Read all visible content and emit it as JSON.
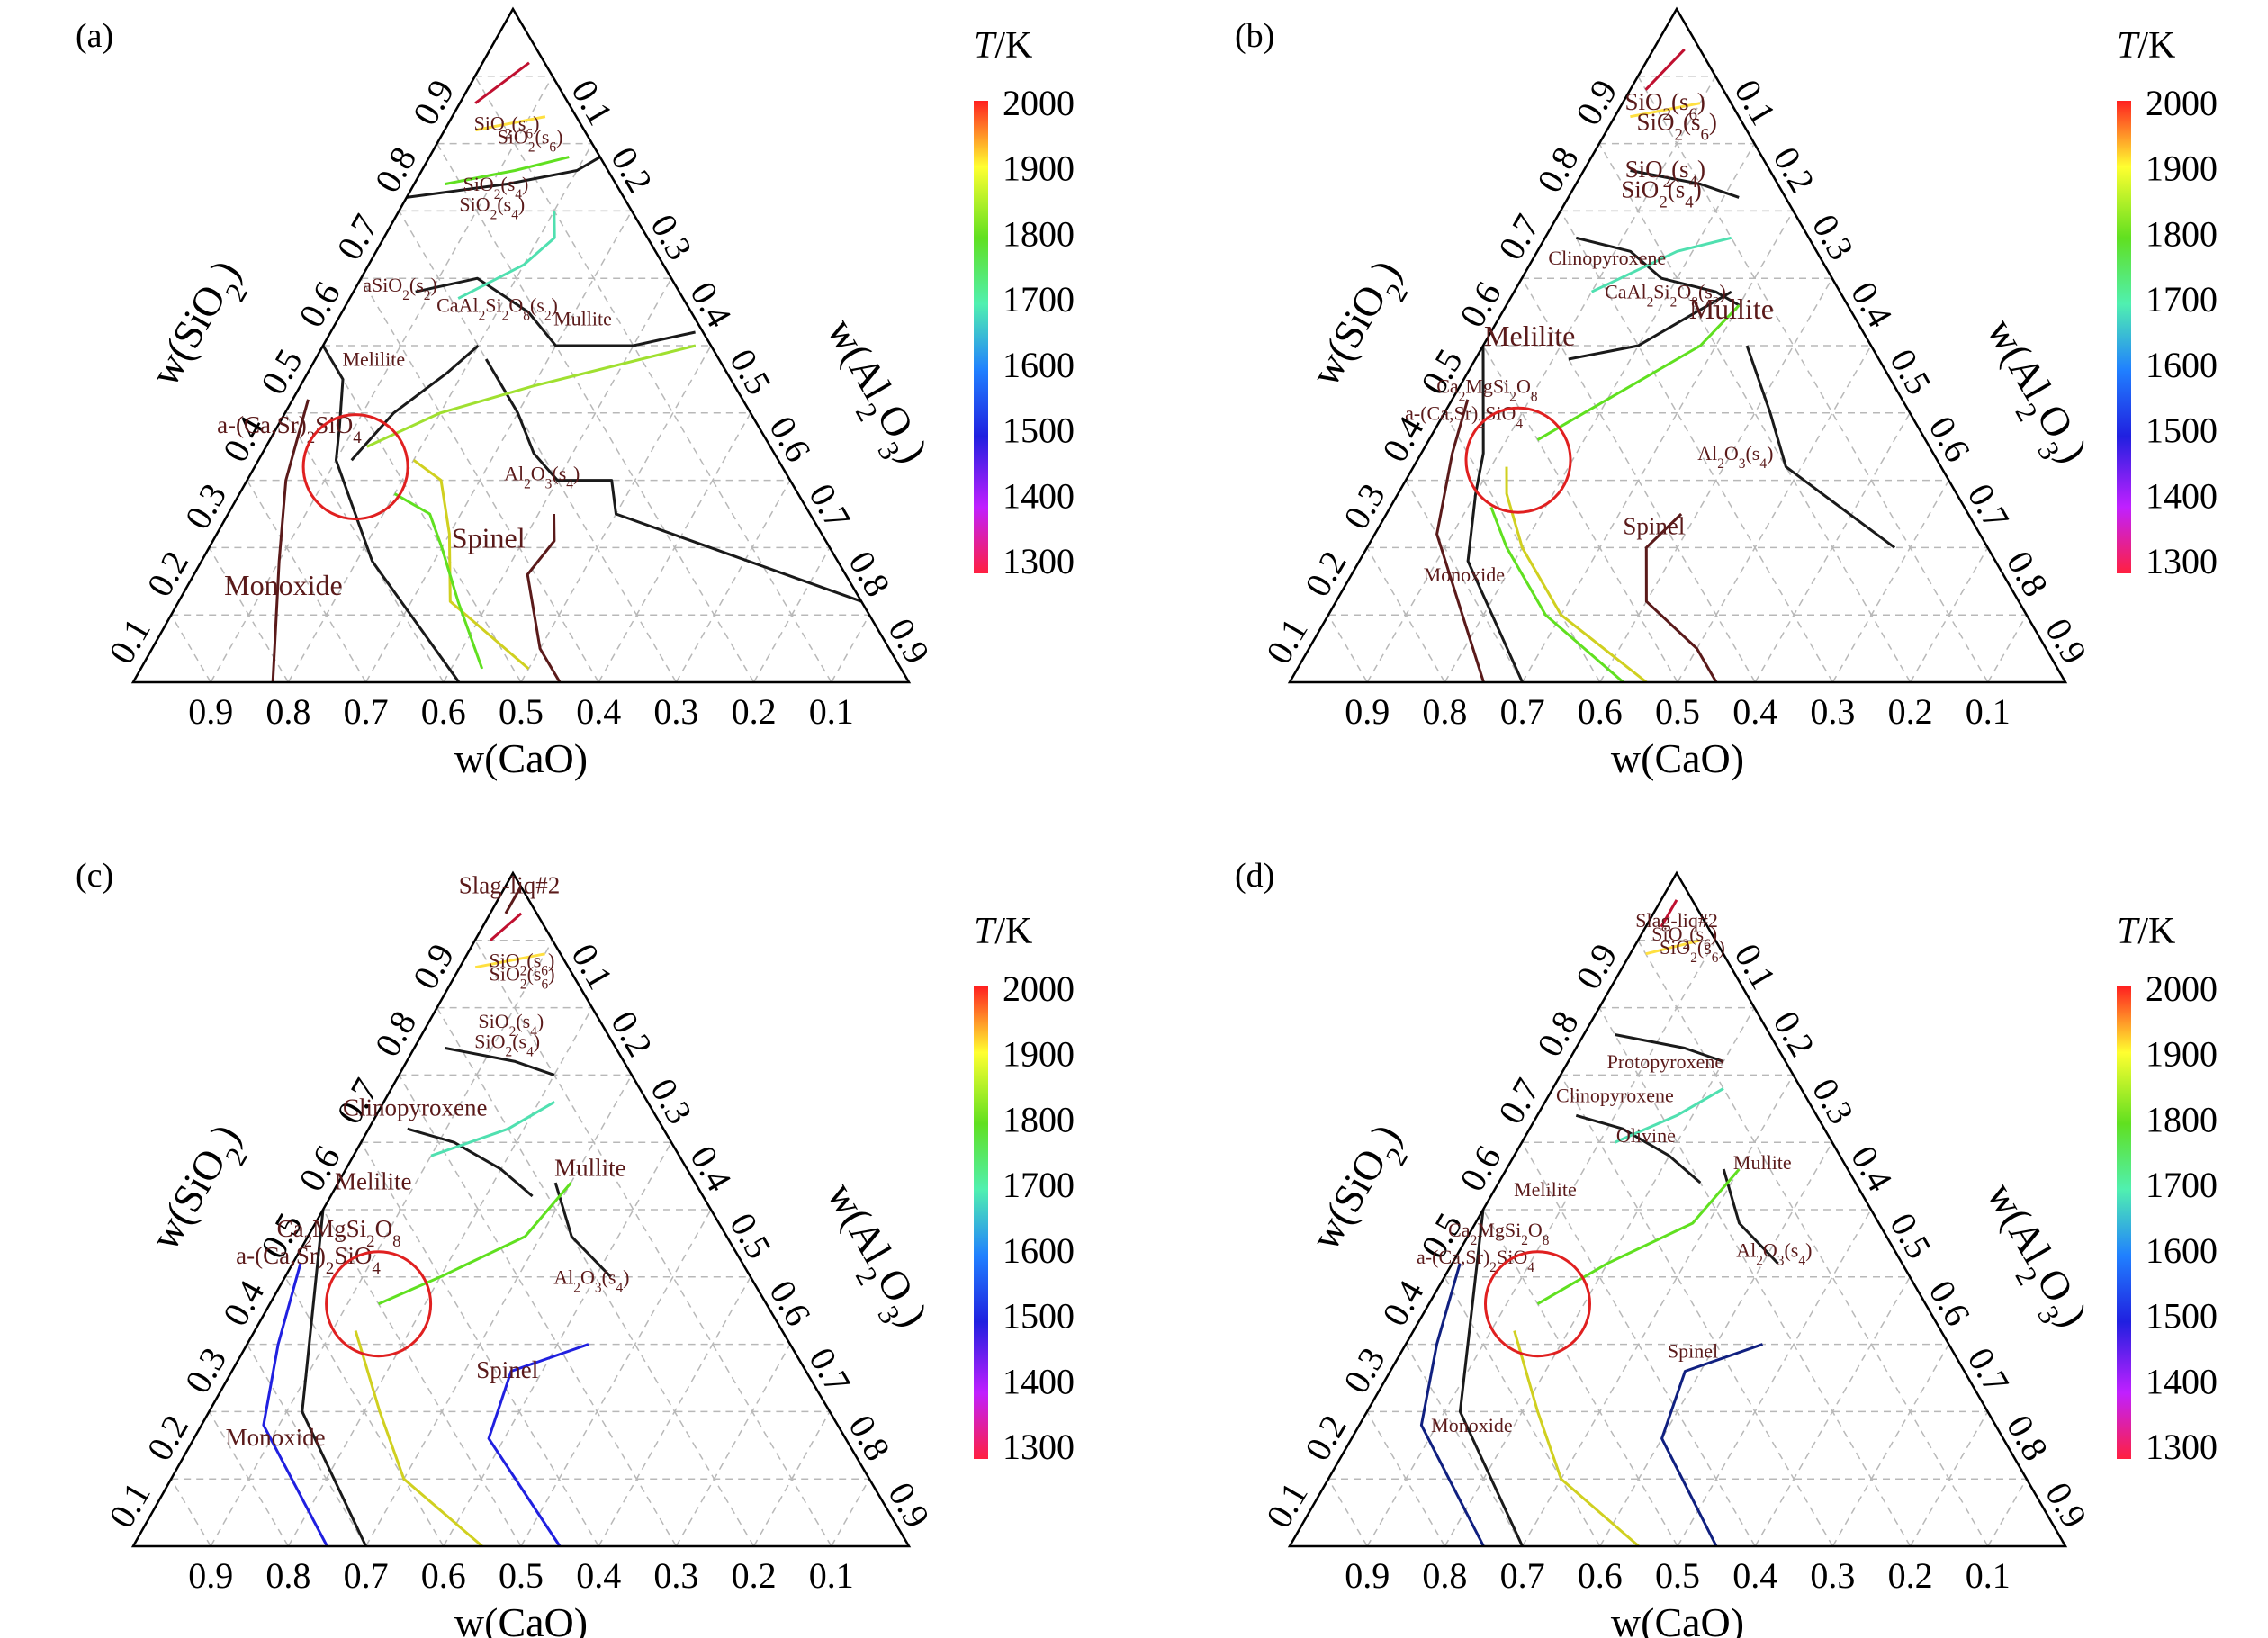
{
  "chart_data": [
    {
      "type": "ternary-phase-diagram",
      "panel": "(a)",
      "axes": {
        "left": "w(SiO2)",
        "right": "w(Al2O3)",
        "bottom": "w(CaO)",
        "ticks": [
          "0.1",
          "0.2",
          "0.3",
          "0.4",
          "0.5",
          "0.6",
          "0.7",
          "0.8",
          "0.9"
        ],
        "bottom_ticks": [
          "0.9",
          "0.8",
          "0.7",
          "0.6",
          "0.5",
          "0.4",
          "0.3",
          "0.2",
          "0.1"
        ]
      },
      "colorbar": {
        "title": "T/K",
        "ticks": [
          "2000",
          "1900",
          "1800",
          "1700",
          "1600",
          "1500",
          "1400",
          "1300"
        ],
        "range": [
          1300,
          2000
        ]
      },
      "regions": [
        {
          "label": "SiO2(s6)",
          "sio2": 0.82,
          "al2o3": 0.08,
          "size": "s"
        },
        {
          "label": "SiO2(s6)",
          "sio2": 0.8,
          "al2o3": 0.12,
          "size": "s"
        },
        {
          "label": "SiO2(s4)",
          "sio2": 0.73,
          "al2o3": 0.11,
          "size": "s"
        },
        {
          "label": "SiO2(s4)",
          "sio2": 0.7,
          "al2o3": 0.12,
          "size": "s"
        },
        {
          "label": "aSiO2(s2)",
          "sio2": 0.58,
          "al2o3": 0.06,
          "size": "s"
        },
        {
          "label": "CaAl2Si2O8(s2)",
          "sio2": 0.55,
          "al2o3": 0.2,
          "size": "s"
        },
        {
          "label": "Mullite",
          "sio2": 0.53,
          "al2o3": 0.32,
          "size": "s"
        },
        {
          "label": "Melilite",
          "sio2": 0.47,
          "al2o3": 0.08,
          "size": "s"
        },
        {
          "label": "a-(Ca,Sr)2SiO4",
          "sio2": 0.37,
          "al2o3": 0.02,
          "size": "m"
        },
        {
          "label": "Al2O3(s4)",
          "sio2": 0.3,
          "al2o3": 0.38,
          "size": "s"
        },
        {
          "label": "Spinel",
          "sio2": 0.2,
          "al2o3": 0.36,
          "size": "l"
        },
        {
          "label": "Monoxide",
          "sio2": 0.13,
          "al2o3": 0.13,
          "size": "l"
        }
      ],
      "highlight_circle": {
        "sio2": 0.32,
        "al2o3": 0.13
      }
    },
    {
      "type": "ternary-phase-diagram",
      "panel": "(b)",
      "axes": {
        "left": "w(SiO2)",
        "right": "w(Al2O3)",
        "bottom": "w(CaO)",
        "ticks": [
          "0.1",
          "0.2",
          "0.3",
          "0.4",
          "0.5",
          "0.6",
          "0.7",
          "0.8",
          "0.9"
        ],
        "bottom_ticks": [
          "0.9",
          "0.8",
          "0.7",
          "0.6",
          "0.5",
          "0.4",
          "0.3",
          "0.2",
          "0.1"
        ]
      },
      "colorbar": {
        "title": "T/K",
        "ticks": [
          "2000",
          "1900",
          "1800",
          "1700",
          "1600",
          "1500",
          "1400",
          "1300"
        ],
        "range": [
          1300,
          2000
        ]
      },
      "regions": [
        {
          "label": "SiO2(s6)",
          "sio2": 0.85,
          "al2o3": 0.06,
          "size": "m"
        },
        {
          "label": "SiO2(s6)",
          "sio2": 0.82,
          "al2o3": 0.09,
          "size": "m"
        },
        {
          "label": "SiO2(s4)",
          "sio2": 0.75,
          "al2o3": 0.11,
          "size": "m"
        },
        {
          "label": "SiO2(s4)",
          "sio2": 0.72,
          "al2o3": 0.12,
          "size": "m"
        },
        {
          "label": "Clinopyroxene",
          "sio2": 0.62,
          "al2o3": 0.1,
          "size": "s"
        },
        {
          "label": "CaAl2Si2O8(s2)",
          "sio2": 0.57,
          "al2o3": 0.2,
          "size": "s"
        },
        {
          "label": "Mullite",
          "sio2": 0.54,
          "al2o3": 0.3,
          "size": "l"
        },
        {
          "label": "Melilite",
          "sio2": 0.5,
          "al2o3": 0.06,
          "size": "l"
        },
        {
          "label": "Ca2MgSi2O8",
          "sio2": 0.43,
          "al2o3": 0.04,
          "size": "s"
        },
        {
          "label": "a-(Ca,Sr)2SiO4",
          "sio2": 0.39,
          "al2o3": 0.03,
          "size": "s"
        },
        {
          "label": "Al2O3(s4)",
          "sio2": 0.33,
          "al2o3": 0.41,
          "size": "s"
        },
        {
          "label": "Spinel",
          "sio2": 0.22,
          "al2o3": 0.36,
          "size": "m"
        },
        {
          "label": "Monoxide",
          "sio2": 0.15,
          "al2o3": 0.15,
          "size": "s"
        }
      ],
      "highlight_circle": {
        "sio2": 0.33,
        "al2o3": 0.13
      }
    },
    {
      "type": "ternary-phase-diagram",
      "panel": "(c)",
      "axes": {
        "left": "w(SiO2)",
        "right": "w(Al2O3)",
        "bottom": "w(CaO)",
        "ticks": [
          "0.1",
          "0.2",
          "0.3",
          "0.4",
          "0.5",
          "0.6",
          "0.7",
          "0.8",
          "0.9"
        ],
        "bottom_ticks": [
          "0.9",
          "0.8",
          "0.7",
          "0.6",
          "0.5",
          "0.4",
          "0.3",
          "0.2",
          "0.1"
        ]
      },
      "colorbar": {
        "title": "T/K",
        "ticks": [
          "2000",
          "1900",
          "1800",
          "1700",
          "1600",
          "1500",
          "1400",
          "1300"
        ],
        "range": [
          1300,
          2000
        ]
      },
      "regions": [
        {
          "label": "Slag-liq#2",
          "sio2": 0.97,
          "al2o3": 0.01,
          "size": "m"
        },
        {
          "label": "SiO2(s6)",
          "sio2": 0.86,
          "al2o3": 0.08,
          "size": "s"
        },
        {
          "label": "SiO2(s6)",
          "sio2": 0.84,
          "al2o3": 0.09,
          "size": "s"
        },
        {
          "label": "SiO2(s4)",
          "sio2": 0.77,
          "al2o3": 0.11,
          "size": "s"
        },
        {
          "label": "SiO2(s4)",
          "sio2": 0.74,
          "al2o3": 0.12,
          "size": "s"
        },
        {
          "label": "Clinopyroxene",
          "sio2": 0.64,
          "al2o3": 0.05,
          "size": "m"
        },
        {
          "label": "Mullite",
          "sio2": 0.55,
          "al2o3": 0.32,
          "size": "m"
        },
        {
          "label": "Melilite",
          "sio2": 0.53,
          "al2o3": 0.05,
          "size": "m"
        },
        {
          "label": "Ca2MgSi2O8",
          "sio2": 0.46,
          "al2o3": 0.04,
          "size": "m"
        },
        {
          "label": "a-(Ca,Sr)2SiO4",
          "sio2": 0.42,
          "al2o3": 0.02,
          "size": "m"
        },
        {
          "label": "Al2O3(s4)",
          "sio2": 0.39,
          "al2o3": 0.4,
          "size": "s"
        },
        {
          "label": "Spinel",
          "sio2": 0.25,
          "al2o3": 0.36,
          "size": "m"
        },
        {
          "label": "Monoxide",
          "sio2": 0.15,
          "al2o3": 0.11,
          "size": "m"
        }
      ],
      "highlight_circle": {
        "sio2": 0.36,
        "al2o3": 0.14
      }
    },
    {
      "type": "ternary-phase-diagram",
      "panel": "(d)",
      "axes": {
        "left": "w(SiO2)",
        "right": "w(Al2O3)",
        "bottom": "w(CaO)",
        "ticks": [
          "0.1",
          "0.2",
          "0.3",
          "0.4",
          "0.5",
          "0.6",
          "0.7",
          "0.8",
          "0.9"
        ],
        "bottom_ticks": [
          "0.9",
          "0.8",
          "0.7",
          "0.6",
          "0.5",
          "0.4",
          "0.3",
          "0.2",
          "0.1"
        ]
      },
      "colorbar": {
        "title": "T/K",
        "ticks": [
          "2000",
          "1900",
          "1800",
          "1700",
          "1600",
          "1500",
          "1400",
          "1300"
        ],
        "range": [
          1300,
          2000
        ]
      },
      "regions": [
        {
          "label": "Slag-liq#2",
          "sio2": 0.92,
          "al2o3": 0.04,
          "size": "s"
        },
        {
          "label": "SiO2(s6)",
          "sio2": 0.9,
          "al2o3": 0.06,
          "size": "s"
        },
        {
          "label": "SiO2(s6)",
          "sio2": 0.88,
          "al2o3": 0.08,
          "size": "s"
        },
        {
          "label": "Protopyroxene",
          "sio2": 0.71,
          "al2o3": 0.13,
          "size": "s"
        },
        {
          "label": "Clinopyroxene",
          "sio2": 0.66,
          "al2o3": 0.09,
          "size": "s"
        },
        {
          "label": "Olivine",
          "sio2": 0.6,
          "al2o3": 0.16,
          "size": "s"
        },
        {
          "label": "Mullite",
          "sio2": 0.56,
          "al2o3": 0.33,
          "size": "s"
        },
        {
          "label": "Melilite",
          "sio2": 0.52,
          "al2o3": 0.07,
          "size": "s"
        },
        {
          "label": "Ca2MgSi2O8",
          "sio2": 0.46,
          "al2o3": 0.04,
          "size": "s"
        },
        {
          "label": "a-(Ca,Sr)2SiO4",
          "sio2": 0.42,
          "al2o3": 0.03,
          "size": "s"
        },
        {
          "label": "Al2O3(s4)",
          "sio2": 0.43,
          "al2o3": 0.41,
          "size": "s"
        },
        {
          "label": "Spinel",
          "sio2": 0.28,
          "al2o3": 0.38,
          "size": "s"
        },
        {
          "label": "Monoxide",
          "sio2": 0.17,
          "al2o3": 0.15,
          "size": "s"
        }
      ],
      "highlight_circle": {
        "sio2": 0.36,
        "al2o3": 0.14
      }
    }
  ]
}
